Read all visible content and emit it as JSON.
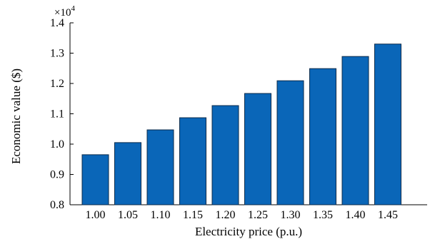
{
  "chart_data": {
    "type": "bar",
    "categories": [
      "1.00",
      "1.05",
      "1.10",
      "1.15",
      "1.20",
      "1.25",
      "1.30",
      "1.35",
      "1.40",
      "1.45"
    ],
    "values": [
      9650,
      10050,
      10470,
      10870,
      11270,
      11670,
      12090,
      12490,
      12890,
      13300
    ],
    "title": "",
    "xlabel": "Electricity price (p.u.)",
    "ylabel": "Economic value ($)",
    "ylim": [
      0.8,
      1.4
    ],
    "yticks": [
      "0.8",
      "0.9",
      "1.0",
      "1.1",
      "1.2",
      "1.3",
      "1.4"
    ],
    "y_exponent_base": "×10",
    "y_exponent_power": "4",
    "grid": false,
    "legend": false,
    "bar_color": "#0a66b8",
    "bar_edge_color": "#0b2a4a"
  }
}
